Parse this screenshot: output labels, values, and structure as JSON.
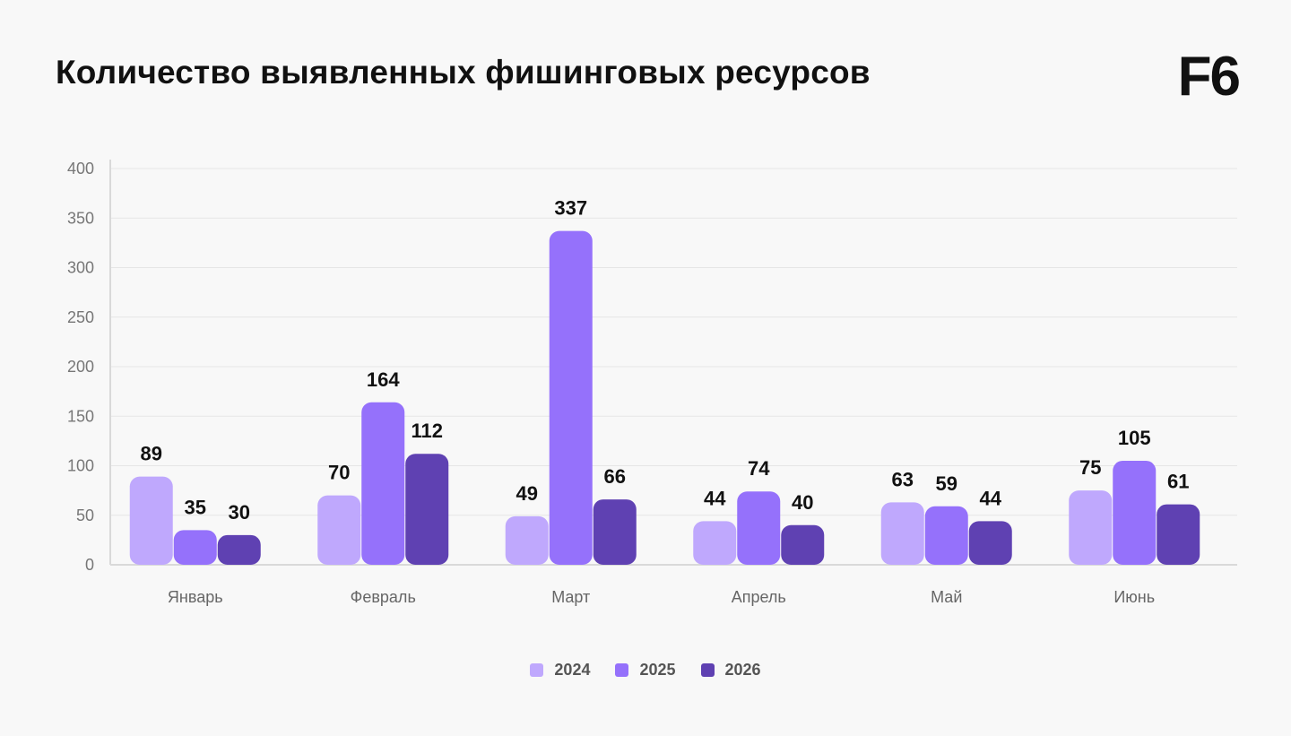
{
  "header": {
    "title": "Количество выявленных фишинговых ресурсов",
    "logo_text": "F6"
  },
  "chart_data": {
    "type": "bar",
    "categories": [
      "Январь",
      "Февраль",
      "Март",
      "Апрель",
      "Май",
      "Июнь"
    ],
    "series": [
      {
        "name": "2024",
        "color": "#bfa8fd",
        "values": [
          89,
          70,
          49,
          44,
          63,
          75
        ]
      },
      {
        "name": "2025",
        "color": "#9571fb",
        "values": [
          35,
          164,
          337,
          74,
          59,
          105
        ]
      },
      {
        "name": "2026",
        "color": "#5f41b2",
        "values": [
          30,
          112,
          66,
          40,
          44,
          61
        ]
      }
    ],
    "ylim": [
      0,
      400
    ],
    "yticks": [
      0,
      50,
      100,
      150,
      200,
      250,
      300,
      350,
      400
    ],
    "grid": true,
    "legend": "bottom-center",
    "title": "Количество выявленных фишинговых ресурсов"
  }
}
